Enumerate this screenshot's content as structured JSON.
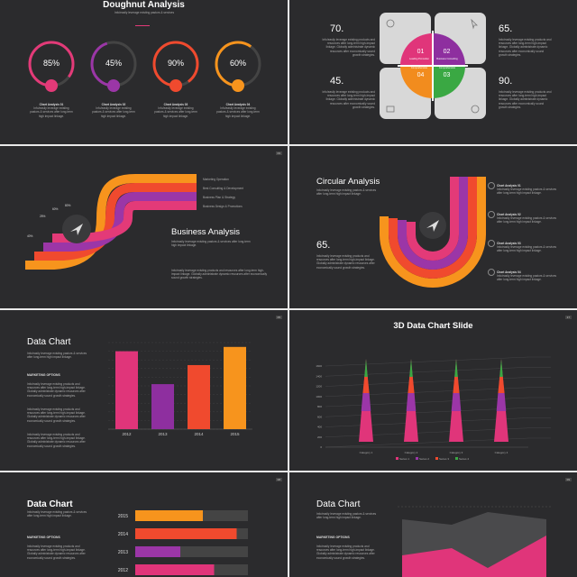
{
  "slide1": {
    "title": "Doughnut Analysis",
    "subtitle": "Info/easily leverage existing pastors & services",
    "rings": [
      {
        "value": "85%",
        "fraction": 0.85,
        "color": "#e33a78",
        "label": "Chart Analysis 01"
      },
      {
        "value": "45%",
        "fraction": 0.45,
        "color": "#9b36a7",
        "label": "Chart Analysis 02"
      },
      {
        "value": "90%",
        "fraction": 0.9,
        "color": "#f04a2e",
        "label": "Chart Analysis 03"
      },
      {
        "value": "60%",
        "fraction": 0.6,
        "color": "#f7941d",
        "label": "Chart Analysis 04"
      }
    ]
  },
  "slide2": {
    "values": [
      "70.",
      "65.",
      "45.",
      "90."
    ],
    "quad": [
      {
        "num": "01",
        "label": "Leading Promotion",
        "color": "#e0357a"
      },
      {
        "num": "02",
        "label": "Business Consulting",
        "color": "#8e2f9f"
      },
      {
        "num": "04",
        "label": "Comprehensive",
        "color": "#f28c1e"
      },
      {
        "num": "03",
        "label": "Comprehensive",
        "color": "#3aa843"
      }
    ]
  },
  "slide3": {
    "title": "Business Analysis",
    "page": "03",
    "items": [
      "Marketing Operation",
      "Best Consulting & Development",
      "Business Plan & Strategy",
      "Business Design & Promotions"
    ],
    "pcts": [
      "40%",
      "25%",
      "60%",
      "80%"
    ]
  },
  "slide4": {
    "title": "Circular Analysis",
    "value": "65.",
    "items": [
      "Chart Analysis 01",
      "Chart Analysis 02",
      "Chart Analysis 03",
      "Chart Analysis 04"
    ]
  },
  "slide5": {
    "title": "Data Chart",
    "heading": "MARKETING OPTIONS",
    "chart_data": {
      "type": "bar",
      "categories": [
        "2012",
        "2013",
        "2014",
        "2015"
      ],
      "values": [
        90,
        52,
        74,
        95
      ],
      "colors": [
        "#e0357a",
        "#8e2f9f",
        "#f04a2e",
        "#f7941d"
      ],
      "ylim": [
        0,
        100
      ]
    }
  },
  "slide6": {
    "title": "3D Data Chart Slide",
    "page": "17",
    "chart_data": {
      "type": "bar",
      "categories": [
        "Category 1",
        "Category 2",
        "Category 3",
        "Category 4"
      ],
      "yticks": [
        "1600",
        "1400",
        "1200",
        "1000",
        "800",
        "600",
        "400",
        "200",
        "0"
      ],
      "legend": [
        "Series 1",
        "Series 2",
        "Series 3",
        "Series 4"
      ]
    }
  },
  "slide7": {
    "title": "Data Chart",
    "heading": "MARKETING OPTIONS",
    "page": "08",
    "chart_data": {
      "type": "bar",
      "categories": [
        "2015",
        "2014",
        "2013",
        "2012"
      ],
      "values": [
        0.6,
        0.9,
        0.4,
        0.7
      ],
      "colors": [
        "#f7941d",
        "#f04a2e",
        "#9b36a7",
        "#e0357a"
      ]
    }
  },
  "slide8": {
    "title": "Data Chart",
    "heading": "MARKETING OPTIONS",
    "page": "09"
  },
  "body_text": "Info/easily leverage existing products and resources after long-term high-impact linkage. Globally administrate dynamic resources after economically sound growth strategies.",
  "short_text": "Info/easily leverage existing pastors & services after long-term high impact linkage."
}
